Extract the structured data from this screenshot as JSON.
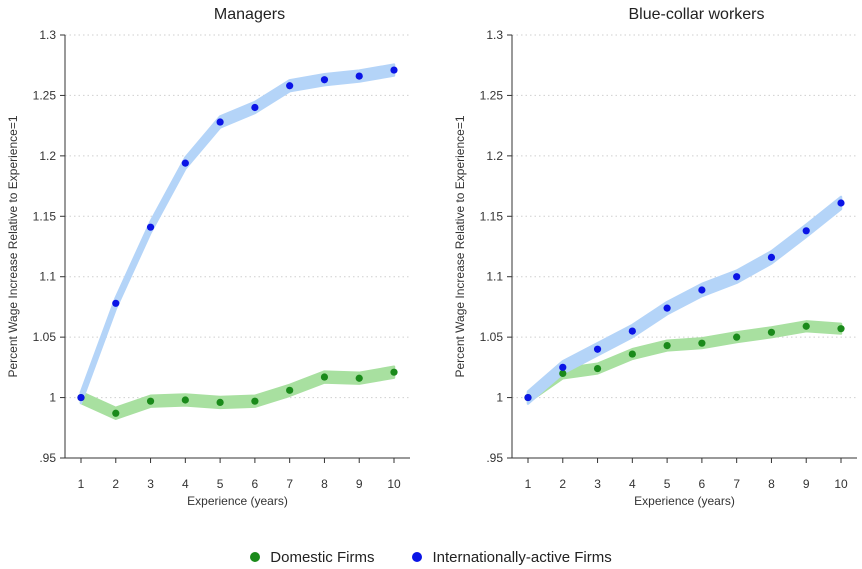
{
  "chart_data": [
    {
      "type": "line",
      "title": "Managers",
      "xlabel": "Experience (years)",
      "ylabel": "Percent Wage Increase Relative to Experience=1",
      "x": [
        1,
        2,
        3,
        4,
        5,
        6,
        7,
        8,
        9,
        10
      ],
      "xticks": [
        "1",
        "2",
        "3",
        "4",
        "5",
        "6",
        "7",
        "8",
        "9",
        "10"
      ],
      "ylim": [
        0.95,
        1.3
      ],
      "yticks": [
        ".95",
        "1",
        "1.05",
        "1.1",
        "1.15",
        "1.2",
        "1.25",
        "1.3"
      ],
      "grid": "horizontal dotted",
      "series": [
        {
          "name": "Domestic Firms",
          "color": "#1a8a1a",
          "band_color": "#a8e0a0",
          "values": [
            1.0,
            0.987,
            0.997,
            0.998,
            0.996,
            0.997,
            1.006,
            1.017,
            1.016,
            1.021
          ],
          "band_halfwidth": 0.0045
        },
        {
          "name": "Internationally-active Firms",
          "color": "#0a14e6",
          "band_color": "#b4d4f8",
          "values": [
            1.0,
            1.078,
            1.141,
            1.194,
            1.228,
            1.24,
            1.258,
            1.263,
            1.266,
            1.271
          ],
          "band_halfwidth": 0.0045
        }
      ]
    },
    {
      "type": "line",
      "title": "Blue-collar workers",
      "xlabel": "Experience (years)",
      "ylabel": "Percent Wage Increase Relative to Experience=1",
      "x": [
        1,
        2,
        3,
        4,
        5,
        6,
        7,
        8,
        9,
        10
      ],
      "xticks": [
        "1",
        "2",
        "3",
        "4",
        "5",
        "6",
        "7",
        "8",
        "9",
        "10"
      ],
      "ylim": [
        0.95,
        1.3
      ],
      "yticks": [
        ".95",
        "1",
        "1.05",
        "1.1",
        "1.15",
        "1.2",
        "1.25",
        "1.3"
      ],
      "grid": "horizontal dotted",
      "series": [
        {
          "name": "Domestic Firms",
          "color": "#1a8a1a",
          "band_color": "#a8e0a0",
          "values": [
            1.0,
            1.02,
            1.024,
            1.036,
            1.043,
            1.045,
            1.05,
            1.054,
            1.059,
            1.057
          ],
          "band_halfwidth": 0.004
        },
        {
          "name": "Internationally-active Firms",
          "color": "#0a14e6",
          "band_color": "#b4d4f8",
          "values": [
            1.0,
            1.025,
            1.04,
            1.055,
            1.074,
            1.089,
            1.1,
            1.116,
            1.138,
            1.161
          ],
          "band_halfwidth": 0.005
        }
      ]
    }
  ],
  "legend": {
    "position": "bottom-center",
    "items": [
      {
        "label": "Domestic Firms",
        "color": "#1a8a1a"
      },
      {
        "label": "Internationally-active Firms",
        "color": "#0a14e6"
      }
    ]
  }
}
